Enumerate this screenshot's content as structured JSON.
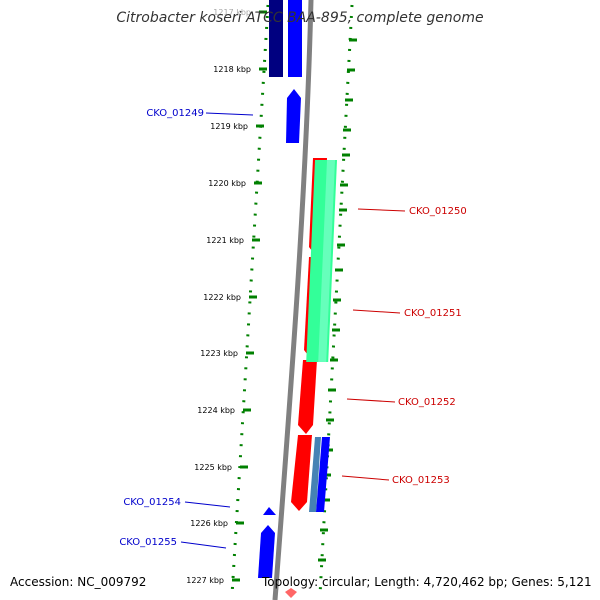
{
  "title": "Citrobacter koseri ATCC BAA-895, complete genome",
  "accession_text": "Accession: NC_009792",
  "summary_text": "Topology: circular; Length: 4,720,462 bp; Genes: 5,121",
  "kbp_ticks": [
    "1217 kbp",
    "1218 kbp",
    "1219 kbp",
    "1220 kbp",
    "1221 kbp",
    "1222 kbp",
    "1223 kbp",
    "1224 kbp",
    "1225 kbp",
    "1226 kbp",
    "1227 kbp"
  ],
  "gene_labels": {
    "left": [
      "CKO_01249",
      "CKO_01254",
      "CKO_01255"
    ],
    "right": [
      "CKO_01250",
      "CKO_01251",
      "CKO_01252",
      "CKO_01253"
    ]
  },
  "colors": {
    "forward_gene": "#0000ff",
    "forward_gene_dark": "#000080",
    "reverse_gene": "#ff0000",
    "rna_gene": "#33ff99",
    "steelblue_gene": "#4682b4",
    "backbone": "#808080",
    "dots": "#008000",
    "label_left": "#0000cc",
    "label_right": "#cc0000"
  }
}
